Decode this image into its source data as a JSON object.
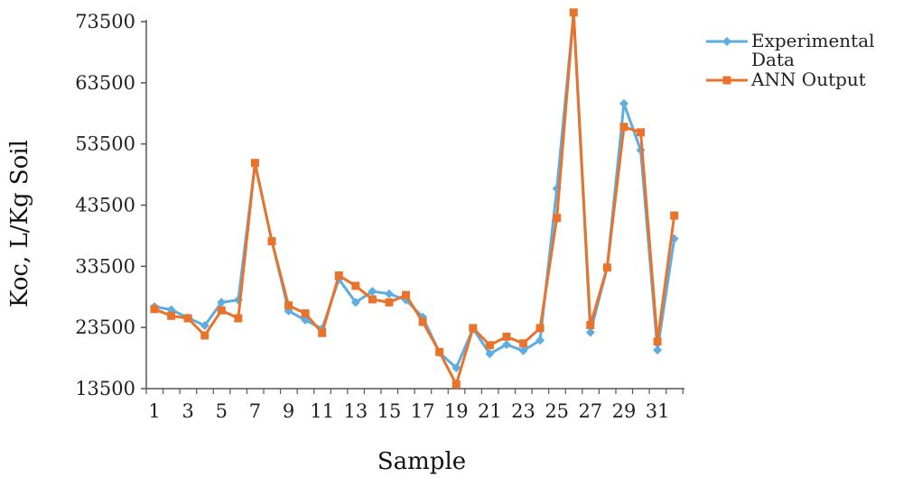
{
  "chart_data": {
    "type": "line",
    "xlabel": "Sample",
    "ylabel": "Koc, L/Kg Soil",
    "ylim": [
      13500,
      73500
    ],
    "yticks": [
      "13500",
      "23500",
      "33500",
      "43500",
      "53500",
      "63500",
      "73500"
    ],
    "xlim": [
      1,
      32
    ],
    "xticks": [
      "1",
      "3",
      "5",
      "7",
      "9",
      "11",
      "13",
      "15",
      "17",
      "19",
      "21",
      "23",
      "25",
      "27",
      "29",
      "31"
    ],
    "grid": false,
    "legend_position": "top-right",
    "x": [
      1,
      2,
      3,
      4,
      5,
      6,
      7,
      8,
      9,
      10,
      11,
      12,
      13,
      14,
      15,
      16,
      17,
      18,
      19,
      20,
      21,
      22,
      23,
      24,
      25,
      26,
      27,
      28,
      29,
      30,
      31,
      32
    ],
    "series": [
      {
        "name": "Experimental Data",
        "color": "#5DADE2",
        "marker": "diamond",
        "values": [
          26900,
          26400,
          25100,
          23800,
          27600,
          28000,
          50200,
          37700,
          26200,
          24700,
          23300,
          31400,
          27600,
          29400,
          29000,
          28000,
          25200,
          19400,
          16900,
          23300,
          19200,
          20700,
          19700,
          21400,
          46200,
          74800,
          22700,
          33300,
          60100,
          52500,
          19800,
          38000
        ]
      },
      {
        "name": "ANN Output",
        "color": "#E8742C",
        "marker": "square",
        "values": [
          26500,
          25400,
          25000,
          22200,
          26300,
          25000,
          50400,
          37600,
          27100,
          25800,
          22600,
          32000,
          30300,
          28100,
          27600,
          28800,
          24400,
          19500,
          14200,
          23400,
          20600,
          22000,
          20900,
          23400,
          41400,
          75000,
          23900,
          33300,
          56300,
          55400,
          21200,
          41800
        ]
      }
    ]
  }
}
